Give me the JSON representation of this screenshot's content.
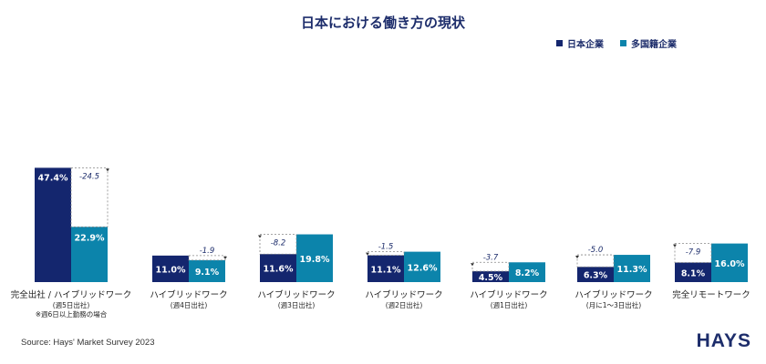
{
  "logo_text": "HAYS",
  "source": "Source: Hays' Market Survey 2023",
  "colors": {
    "japan": "#14266e",
    "multinational": "#0c84ab",
    "diff_text": "#1d2d6b"
  },
  "chart_data": {
    "type": "bar",
    "title": "日本における働き方の現状",
    "categories": [
      {
        "label": "完全出社 / ハイブリッドワーク",
        "sub": "(週5日出社)",
        "note": "※週6日以上勤務の場合"
      },
      {
        "label": "ハイブリッドワーク",
        "sub": "(週4日出社)",
        "note": ""
      },
      {
        "label": "ハイブリッドワーク",
        "sub": "(週3日出社)",
        "note": ""
      },
      {
        "label": "ハイブリッドワーク",
        "sub": "(週2日出社)",
        "note": ""
      },
      {
        "label": "ハイブリッドワーク",
        "sub": "(週1日出社)",
        "note": ""
      },
      {
        "label": "ハイブリッドワーク",
        "sub": "(月に1～3日出社)",
        "note": ""
      },
      {
        "label": "完全リモートワーク",
        "sub": "",
        "note": ""
      }
    ],
    "series": [
      {
        "name": "日本企業",
        "values": [
          47.4,
          11.0,
          11.6,
          11.1,
          4.5,
          6.3,
          8.1
        ],
        "labels": [
          "47.4%",
          "11.0%",
          "11.6%",
          "11.1%",
          "4.5%",
          "6.3%",
          "8.1%"
        ]
      },
      {
        "name": "多国籍企業",
        "values": [
          22.9,
          9.1,
          19.8,
          12.6,
          8.2,
          11.3,
          16.0
        ],
        "labels": [
          "22.9%",
          "9.1%",
          "19.8%",
          "12.6%",
          "8.2%",
          "11.3%",
          "16.0%"
        ]
      }
    ],
    "differences": [
      "-24.5",
      "-1.9",
      "-8.2",
      "-1.5",
      "-3.7",
      "-5.0",
      "-7.9"
    ],
    "legend_position": "top-right",
    "grid": false
  }
}
